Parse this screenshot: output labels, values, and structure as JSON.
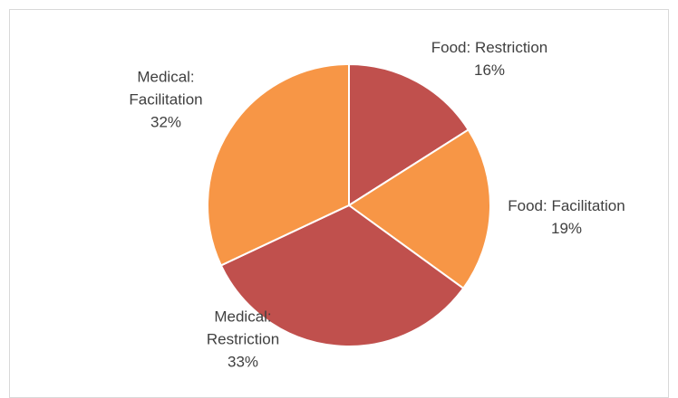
{
  "chart_data": {
    "type": "pie",
    "categories": [
      "Food: Restriction",
      "Food: Facilitation",
      "Medical: Restriction",
      "Medical: Facilitation"
    ],
    "values": [
      16,
      19,
      33,
      32
    ],
    "value_labels": [
      "16%",
      "19%",
      "33%",
      "32%"
    ],
    "colors": [
      "#C0504D",
      "#F79646",
      "#C0504D",
      "#F79646"
    ]
  }
}
